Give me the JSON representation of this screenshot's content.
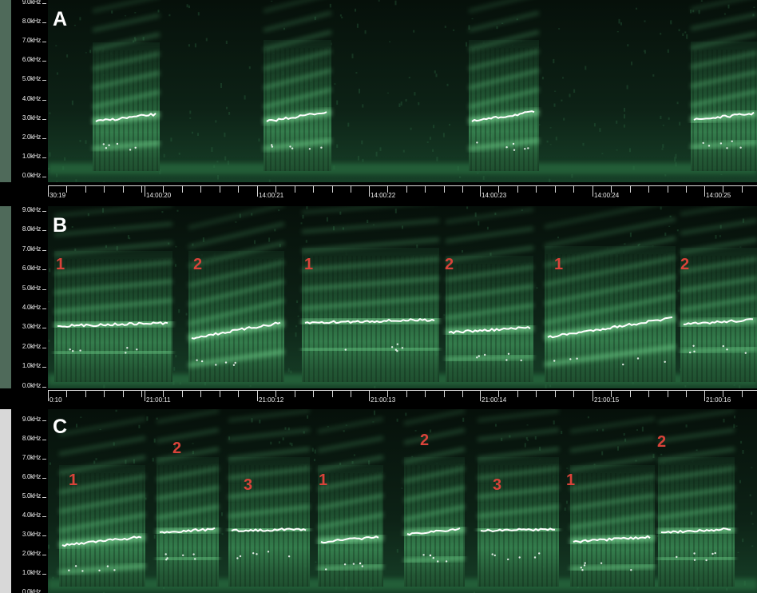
{
  "colors": {
    "background": "#000000",
    "spectrogram_mid": "#1d4a2c",
    "harmonic": "#4ea86a",
    "trace": "#ffffff",
    "segment_label": "#d9433a",
    "left_strip_a": "#4f6a5a",
    "left_strip_b": "#d8d8d8"
  },
  "freq_labels": [
    "9.0kHz",
    "8.0kHz",
    "7.0kHz",
    "6.0kHz",
    "5.0kHz",
    "4.0kHz",
    "3.0kHz",
    "2.0kHz",
    "1.0kHz",
    "0.0kHz"
  ],
  "panels": [
    {
      "label": "A",
      "time_labels": [
        "30:19",
        "14:00:20",
        "14:00:21",
        "14:00:22",
        "14:00:23",
        "14:00:24",
        "14:00:25"
      ],
      "segment_labels": []
    },
    {
      "label": "B",
      "time_labels": [
        "0:10",
        "21:00:11",
        "21:00:12",
        "21:00:13",
        "21:00:14",
        "21:00:15",
        "21:00:16"
      ],
      "segment_labels": [
        "1",
        "2",
        "1",
        "2",
        "1",
        "2"
      ]
    },
    {
      "label": "C",
      "time_labels": [],
      "segment_labels": [
        "1",
        "2",
        "3",
        "1",
        "2",
        "3",
        "1",
        "2"
      ]
    }
  ]
}
